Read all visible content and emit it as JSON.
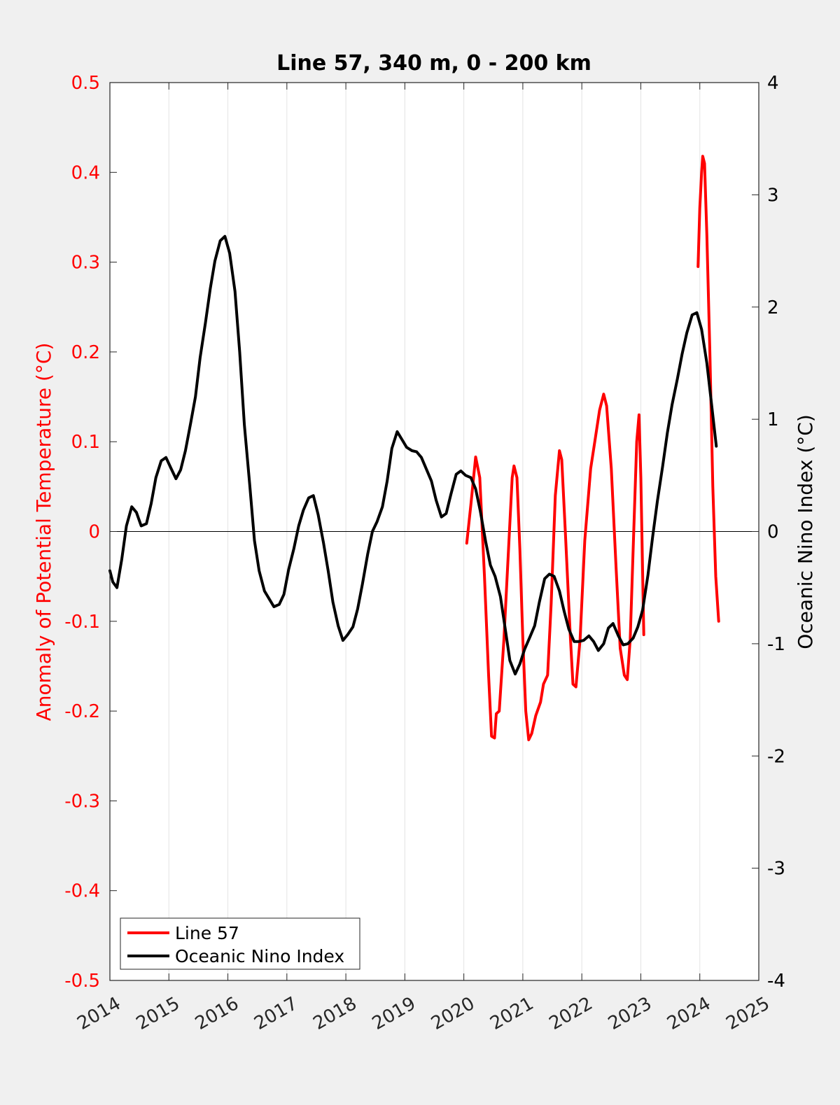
{
  "chart_data": {
    "type": "line",
    "title": "Line 57, 340 m, 0 - 200 km",
    "xlabel": "",
    "ylabel_left": "Anomaly of Potential Temperature (°C)",
    "ylabel_right": "Oceanic Nino Index (°C)",
    "xlim": [
      2014,
      2025
    ],
    "ylim_left": [
      -0.5,
      0.5
    ],
    "ylim_right": [
      -4,
      4
    ],
    "x_ticks": [
      "2014",
      "2015",
      "2016",
      "2017",
      "2018",
      "2019",
      "2020",
      "2021",
      "2022",
      "2023",
      "2024",
      "2025"
    ],
    "y_left_ticks": [
      "0.5",
      "0.4",
      "0.3",
      "0.2",
      "0.1",
      "0",
      "-0.1",
      "-0.2",
      "-0.3",
      "-0.4",
      "-0.5"
    ],
    "y_right_ticks": [
      "4",
      "3",
      "2",
      "1",
      "0",
      "-1",
      "-2",
      "-3",
      "-4"
    ],
    "grid": "vertical",
    "legend_position": "bottom-left",
    "colors": {
      "line57": "#ff0000",
      "oni": "#000000",
      "left_axis": "#ff0000",
      "right_axis": "#000000"
    },
    "series": [
      {
        "name": "Line 57",
        "axis": "left",
        "segments": [
          [
            [
              2020.05,
              -0.013
            ],
            [
              2020.12,
              0.03
            ],
            [
              2020.2,
              0.083
            ],
            [
              2020.27,
              0.06
            ],
            [
              2020.35,
              -0.05
            ],
            [
              2020.42,
              -0.16
            ],
            [
              2020.47,
              -0.228
            ],
            [
              2020.52,
              -0.23
            ],
            [
              2020.55,
              -0.203
            ],
            [
              2020.6,
              -0.2
            ],
            [
              2020.68,
              -0.12
            ],
            [
              2020.75,
              -0.03
            ],
            [
              2020.82,
              0.06
            ],
            [
              2020.85,
              0.073
            ],
            [
              2020.9,
              0.06
            ],
            [
              2020.95,
              -0.02
            ],
            [
              2021.0,
              -0.12
            ],
            [
              2021.05,
              -0.2
            ],
            [
              2021.1,
              -0.232
            ],
            [
              2021.15,
              -0.225
            ],
            [
              2021.22,
              -0.205
            ],
            [
              2021.3,
              -0.19
            ],
            [
              2021.35,
              -0.17
            ],
            [
              2021.42,
              -0.16
            ],
            [
              2021.48,
              -0.08
            ],
            [
              2021.55,
              0.04
            ],
            [
              2021.62,
              0.09
            ],
            [
              2021.66,
              0.08
            ],
            [
              2021.72,
              0.0
            ],
            [
              2021.8,
              -0.11
            ],
            [
              2021.85,
              -0.17
            ],
            [
              2021.9,
              -0.173
            ],
            [
              2021.97,
              -0.12
            ],
            [
              2022.05,
              -0.01
            ],
            [
              2022.15,
              0.07
            ],
            [
              2022.22,
              0.1
            ],
            [
              2022.3,
              0.135
            ],
            [
              2022.37,
              0.153
            ],
            [
              2022.42,
              0.14
            ],
            [
              2022.5,
              0.07
            ],
            [
              2022.58,
              -0.04
            ],
            [
              2022.65,
              -0.13
            ],
            [
              2022.72,
              -0.16
            ],
            [
              2022.77,
              -0.165
            ],
            [
              2022.82,
              -0.12
            ],
            [
              2022.87,
              -0.02
            ],
            [
              2022.93,
              0.1
            ],
            [
              2022.97,
              0.13
            ],
            [
              2023.0,
              0.06
            ],
            [
              2023.05,
              -0.115
            ]
          ],
          [
            [
              2023.97,
              0.295
            ],
            [
              2024.0,
              0.36
            ],
            [
              2024.03,
              0.4
            ],
            [
              2024.05,
              0.418
            ],
            [
              2024.08,
              0.41
            ],
            [
              2024.12,
              0.33
            ],
            [
              2024.17,
              0.2
            ],
            [
              2024.22,
              0.05
            ],
            [
              2024.27,
              -0.05
            ],
            [
              2024.32,
              -0.1
            ]
          ]
        ]
      },
      {
        "name": "Oceanic Nino Index",
        "axis": "right",
        "segments": [
          [
            [
              2014.0,
              -0.35
            ],
            [
              2014.05,
              -0.45
            ],
            [
              2014.12,
              -0.5
            ],
            [
              2014.2,
              -0.25
            ],
            [
              2014.28,
              0.05
            ],
            [
              2014.37,
              0.22
            ],
            [
              2014.45,
              0.17
            ],
            [
              2014.53,
              0.05
            ],
            [
              2014.62,
              0.07
            ],
            [
              2014.7,
              0.25
            ],
            [
              2014.78,
              0.48
            ],
            [
              2014.87,
              0.63
            ],
            [
              2014.95,
              0.66
            ],
            [
              2015.03,
              0.57
            ],
            [
              2015.12,
              0.47
            ],
            [
              2015.2,
              0.55
            ],
            [
              2015.28,
              0.72
            ],
            [
              2015.37,
              0.97
            ],
            [
              2015.45,
              1.2
            ],
            [
              2015.53,
              1.55
            ],
            [
              2015.62,
              1.86
            ],
            [
              2015.7,
              2.16
            ],
            [
              2015.78,
              2.41
            ],
            [
              2015.87,
              2.59
            ],
            [
              2015.95,
              2.63
            ],
            [
              2016.03,
              2.48
            ],
            [
              2016.12,
              2.14
            ],
            [
              2016.2,
              1.6
            ],
            [
              2016.28,
              0.95
            ],
            [
              2016.37,
              0.42
            ],
            [
              2016.45,
              -0.08
            ],
            [
              2016.53,
              -0.35
            ],
            [
              2016.62,
              -0.53
            ],
            [
              2016.7,
              -0.6
            ],
            [
              2016.78,
              -0.67
            ],
            [
              2016.87,
              -0.65
            ],
            [
              2016.95,
              -0.56
            ],
            [
              2017.03,
              -0.34
            ],
            [
              2017.12,
              -0.15
            ],
            [
              2017.2,
              0.05
            ],
            [
              2017.28,
              0.19
            ],
            [
              2017.37,
              0.3
            ],
            [
              2017.45,
              0.32
            ],
            [
              2017.53,
              0.15
            ],
            [
              2017.62,
              -0.1
            ],
            [
              2017.7,
              -0.35
            ],
            [
              2017.78,
              -0.63
            ],
            [
              2017.87,
              -0.84
            ],
            [
              2017.95,
              -0.97
            ],
            [
              2018.03,
              -0.92
            ],
            [
              2018.12,
              -0.85
            ],
            [
              2018.2,
              -0.69
            ],
            [
              2018.28,
              -0.47
            ],
            [
              2018.37,
              -0.2
            ],
            [
              2018.45,
              0.0
            ],
            [
              2018.53,
              0.09
            ],
            [
              2018.62,
              0.22
            ],
            [
              2018.7,
              0.45
            ],
            [
              2018.78,
              0.74
            ],
            [
              2018.87,
              0.89
            ],
            [
              2018.95,
              0.82
            ],
            [
              2019.03,
              0.75
            ],
            [
              2019.12,
              0.72
            ],
            [
              2019.2,
              0.71
            ],
            [
              2019.28,
              0.66
            ],
            [
              2019.37,
              0.55
            ],
            [
              2019.45,
              0.45
            ],
            [
              2019.53,
              0.28
            ],
            [
              2019.62,
              0.13
            ],
            [
              2019.7,
              0.16
            ],
            [
              2019.78,
              0.33
            ],
            [
              2019.87,
              0.51
            ],
            [
              2019.95,
              0.54
            ],
            [
              2020.03,
              0.5
            ],
            [
              2020.12,
              0.48
            ],
            [
              2020.2,
              0.38
            ],
            [
              2020.28,
              0.18
            ],
            [
              2020.37,
              -0.09
            ],
            [
              2020.45,
              -0.3
            ],
            [
              2020.53,
              -0.4
            ],
            [
              2020.62,
              -0.58
            ],
            [
              2020.7,
              -0.86
            ],
            [
              2020.78,
              -1.15
            ],
            [
              2020.87,
              -1.27
            ],
            [
              2020.95,
              -1.18
            ],
            [
              2021.03,
              -1.05
            ],
            [
              2021.12,
              -0.94
            ],
            [
              2021.2,
              -0.84
            ],
            [
              2021.28,
              -0.63
            ],
            [
              2021.37,
              -0.42
            ],
            [
              2021.45,
              -0.38
            ],
            [
              2021.53,
              -0.4
            ],
            [
              2021.62,
              -0.53
            ],
            [
              2021.7,
              -0.71
            ],
            [
              2021.78,
              -0.87
            ],
            [
              2021.87,
              -0.98
            ],
            [
              2021.95,
              -0.98
            ],
            [
              2022.03,
              -0.97
            ],
            [
              2022.12,
              -0.93
            ],
            [
              2022.2,
              -0.98
            ],
            [
              2022.28,
              -1.06
            ],
            [
              2022.37,
              -1.0
            ],
            [
              2022.45,
              -0.86
            ],
            [
              2022.53,
              -0.82
            ],
            [
              2022.62,
              -0.93
            ],
            [
              2022.7,
              -1.01
            ],
            [
              2022.78,
              -1.0
            ],
            [
              2022.87,
              -0.95
            ],
            [
              2022.95,
              -0.85
            ],
            [
              2023.03,
              -0.7
            ],
            [
              2023.12,
              -0.39
            ],
            [
              2023.2,
              -0.05
            ],
            [
              2023.28,
              0.27
            ],
            [
              2023.37,
              0.58
            ],
            [
              2023.45,
              0.88
            ],
            [
              2023.53,
              1.13
            ],
            [
              2023.62,
              1.36
            ],
            [
              2023.7,
              1.58
            ],
            [
              2023.78,
              1.77
            ],
            [
              2023.87,
              1.93
            ],
            [
              2023.95,
              1.95
            ],
            [
              2024.03,
              1.8
            ],
            [
              2024.12,
              1.5
            ],
            [
              2024.2,
              1.13
            ],
            [
              2024.28,
              0.76
            ]
          ]
        ]
      }
    ]
  }
}
